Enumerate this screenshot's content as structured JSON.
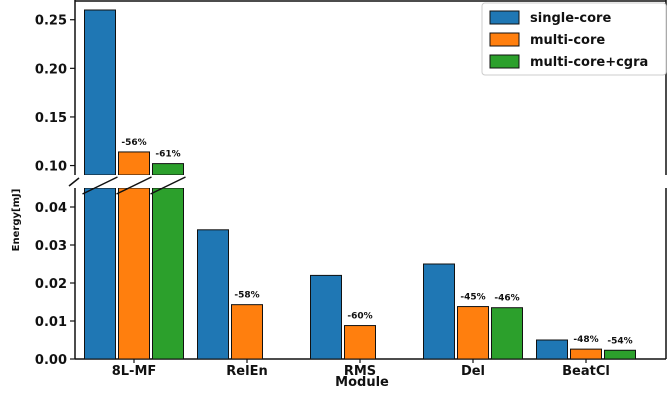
{
  "chart_data": {
    "type": "bar",
    "xlabel": "Module",
    "ylabel": "Energy[mJ]",
    "categories": [
      "8L-MF",
      "RelEn",
      "RMS",
      "Del",
      "BeatCl"
    ],
    "series": [
      {
        "name": "single-core",
        "color": "#1f77b4",
        "values": [
          0.26,
          0.034,
          0.022,
          0.025,
          0.005
        ]
      },
      {
        "name": "multi-core",
        "color": "#ff7f0e",
        "values": [
          0.114,
          0.0143,
          0.0088,
          0.0138,
          0.0026
        ]
      },
      {
        "name": "multi-core+cgra",
        "color": "#2ca02c",
        "values": [
          0.102,
          0.0,
          0.0,
          0.0135,
          0.0023
        ]
      }
    ],
    "annotations": [
      {
        "series": 1,
        "category": 0,
        "text": "-56%"
      },
      {
        "series": 2,
        "category": 0,
        "text": "-61%"
      },
      {
        "series": 1,
        "category": 1,
        "text": "-58%"
      },
      {
        "series": 1,
        "category": 2,
        "text": "-60%"
      },
      {
        "series": 1,
        "category": 3,
        "text": "-45%"
      },
      {
        "series": 2,
        "category": 3,
        "text": "-46%"
      },
      {
        "series": 1,
        "category": 4,
        "text": "-48%"
      },
      {
        "series": 2,
        "category": 4,
        "text": "-54%"
      }
    ],
    "broken_axis": true,
    "upper_yticks": [
      "0.10",
      "0.15",
      "0.20",
      "0.25"
    ],
    "lower_yticks": [
      "0.00",
      "0.01",
      "0.02",
      "0.03",
      "0.04"
    ],
    "ylim_upper": [
      0.08,
      0.26
    ],
    "ylim_lower": [
      0.0,
      0.045
    ],
    "legend_position": "top-right"
  }
}
